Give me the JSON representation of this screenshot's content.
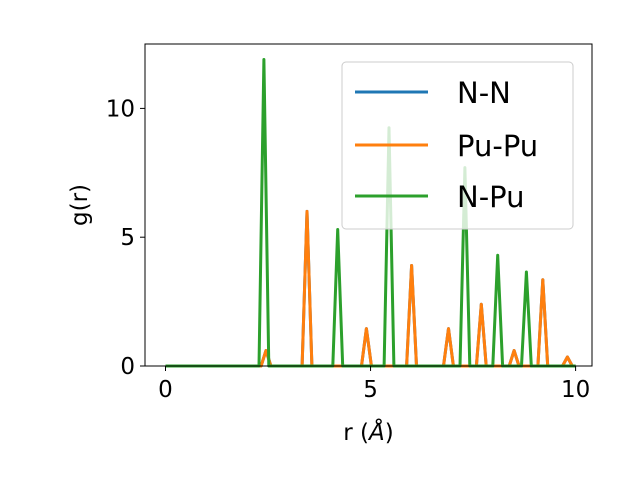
{
  "chart_data": {
    "type": "line",
    "title": "",
    "xlabel": "r (",
    "xlabel_symbol": "Å",
    "xlabel_close": ")",
    "ylabel": "g(r)",
    "xlim": [
      -0.5,
      10.4
    ],
    "ylim": [
      0,
      12.5
    ],
    "xticks": [
      0,
      5,
      10
    ],
    "yticks": [
      0,
      5,
      10
    ],
    "xtick_labels": [
      "0",
      "5",
      "10"
    ],
    "ytick_labels": [
      "0",
      "5",
      "10"
    ],
    "grid": false,
    "legend_position": "top-right",
    "peak_halfwidth": 0.12,
    "series": [
      {
        "name": "N-N",
        "color": "#1f77b4",
        "peaks": [
          [
            2.45,
            0.6
          ],
          [
            3.45,
            6.0
          ],
          [
            4.9,
            1.45
          ],
          [
            6.0,
            3.9
          ],
          [
            6.9,
            1.45
          ],
          [
            7.7,
            2.4
          ],
          [
            8.5,
            0.6
          ],
          [
            9.2,
            3.35
          ],
          [
            9.8,
            0.35
          ]
        ]
      },
      {
        "name": "Pu-Pu",
        "color": "#ff7f0e",
        "peaks": [
          [
            2.45,
            0.6
          ],
          [
            3.45,
            6.0
          ],
          [
            4.9,
            1.45
          ],
          [
            6.0,
            3.9
          ],
          [
            6.9,
            1.45
          ],
          [
            7.7,
            2.4
          ],
          [
            8.5,
            0.6
          ],
          [
            9.2,
            3.35
          ],
          [
            9.8,
            0.35
          ]
        ]
      },
      {
        "name": "N-Pu",
        "color": "#2ca02c",
        "peaks": [
          [
            2.4,
            11.9
          ],
          [
            4.2,
            5.3
          ],
          [
            5.45,
            9.25
          ],
          [
            7.3,
            7.7
          ],
          [
            8.1,
            4.3
          ],
          [
            8.8,
            3.65
          ]
        ]
      }
    ]
  }
}
